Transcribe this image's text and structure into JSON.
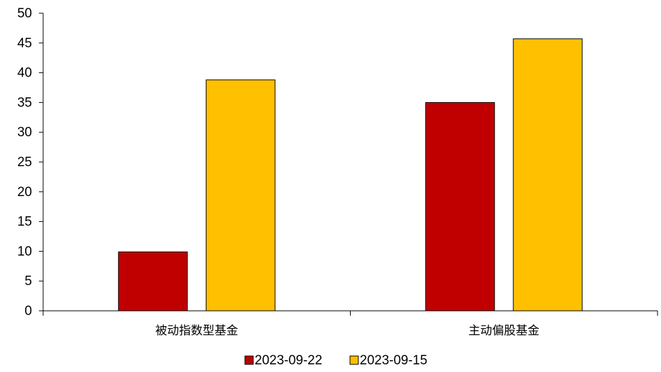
{
  "chart_data": {
    "type": "bar",
    "title": "",
    "xlabel": "",
    "ylabel": "",
    "categories": [
      "被动指数型基金",
      "主动偏股基金"
    ],
    "series": [
      {
        "name": "2023-09-22",
        "values": [
          9.9,
          35.0
        ],
        "color": "#C00000"
      },
      {
        "name": "2023-09-15",
        "values": [
          38.8,
          45.7
        ],
        "color": "#FFC000"
      }
    ],
    "ylim": [
      0,
      50
    ],
    "yticks": [
      0,
      5,
      10,
      15,
      20,
      25,
      30,
      35,
      40,
      45,
      50
    ],
    "grid": false,
    "legend_position": "bottom"
  }
}
